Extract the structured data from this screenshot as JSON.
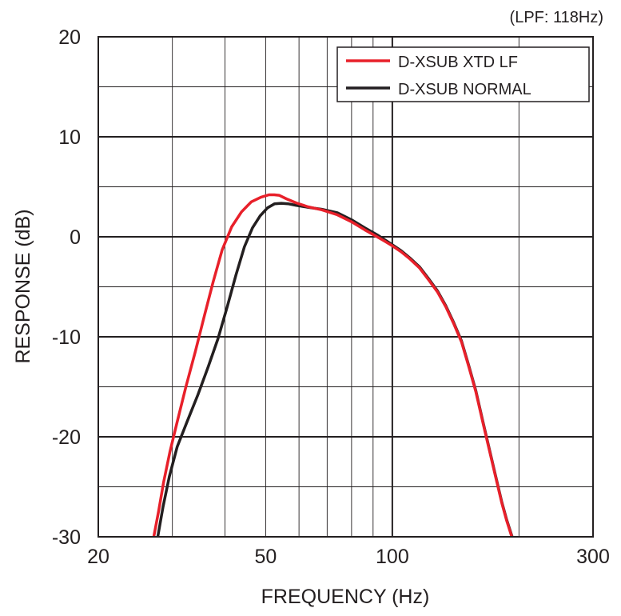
{
  "chart_data": {
    "type": "line",
    "title": "",
    "annotation": "(LPF: 118Hz)",
    "xlabel": "FREQUENCY (Hz)",
    "ylabel": "RESPONSE (dB)",
    "x_scale": "log",
    "xlim": [
      20,
      300
    ],
    "ylim": [
      -30,
      20
    ],
    "x_ticks": [
      20,
      50,
      100,
      300
    ],
    "x_tick_labels": [
      "20",
      "50",
      "100",
      "300"
    ],
    "y_ticks": [
      20,
      10,
      0,
      -10,
      -20,
      -30
    ],
    "y_tick_labels": [
      "20",
      "10",
      "0",
      "-10",
      "-20",
      "-30"
    ],
    "grid": true,
    "legend_position": "top-right",
    "series": [
      {
        "name": "D-XSUB XTD LF",
        "color": "#e8202a",
        "x": [
          27.1,
          27.8,
          28.6,
          29.6,
          30.8,
          32.3,
          34.0,
          35.7,
          37.5,
          39.4,
          41.5,
          43.8,
          46.2,
          48.7,
          50.9,
          52.4,
          53.8,
          56.0,
          59.0,
          63.0,
          68.0,
          74.0,
          80.0,
          86.0,
          92.0,
          96.0,
          100.0,
          105.0,
          110.0,
          116.0,
          122.0,
          128.0,
          134.0,
          140.0,
          146.0,
          152.0,
          158.0,
          164.0,
          170.0,
          176.0,
          182.0,
          187.0,
          192.0,
          196.0,
          200.0,
          203.0
        ],
        "values": [
          -30.0,
          -27.5,
          -24.5,
          -21.5,
          -18.5,
          -15.0,
          -11.5,
          -8.0,
          -4.5,
          -1.3,
          1.0,
          2.5,
          3.5,
          3.95,
          4.2,
          4.2,
          4.15,
          3.8,
          3.4,
          3.0,
          2.7,
          2.2,
          1.5,
          0.7,
          0.0,
          -0.45,
          -0.9,
          -1.5,
          -2.2,
          -3.1,
          -4.3,
          -5.5,
          -7.0,
          -8.7,
          -10.5,
          -13.0,
          -15.5,
          -18.5,
          -21.3,
          -24.0,
          -26.6,
          -28.4,
          -29.9,
          -31.0,
          -32.0,
          -32.6
        ]
      },
      {
        "name": "D-XSUB NORMAL",
        "color": "#231f20",
        "x": [
          27.7,
          28.5,
          29.5,
          30.8,
          32.5,
          34.5,
          36.5,
          38.5,
          40.5,
          42.5,
          44.5,
          46.5,
          48.5,
          50.5,
          52.5,
          54.5,
          56.5,
          59.0,
          63.0,
          68.0,
          74.0,
          80.0,
          86.0,
          92.0,
          96.0,
          100.0,
          105.0,
          110.0,
          116.0,
          122.0,
          128.0,
          134.0,
          140.0,
          146.0,
          152.0,
          158.0,
          164.0,
          170.0,
          176.0,
          182.0,
          187.0,
          192.0,
          196.0,
          200.0,
          203.0
        ],
        "values": [
          -30.0,
          -27.0,
          -24.0,
          -21.0,
          -18.5,
          -15.8,
          -13.0,
          -10.2,
          -7.0,
          -3.8,
          -1.0,
          0.9,
          2.1,
          2.9,
          3.3,
          3.35,
          3.3,
          3.15,
          2.95,
          2.75,
          2.4,
          1.7,
          0.9,
          0.2,
          -0.3,
          -0.8,
          -1.4,
          -2.1,
          -3.0,
          -4.2,
          -5.4,
          -6.9,
          -8.6,
          -10.4,
          -12.9,
          -15.4,
          -18.4,
          -21.2,
          -23.9,
          -26.5,
          -28.3,
          -29.8,
          -30.9,
          -31.9,
          -32.5
        ]
      }
    ]
  }
}
